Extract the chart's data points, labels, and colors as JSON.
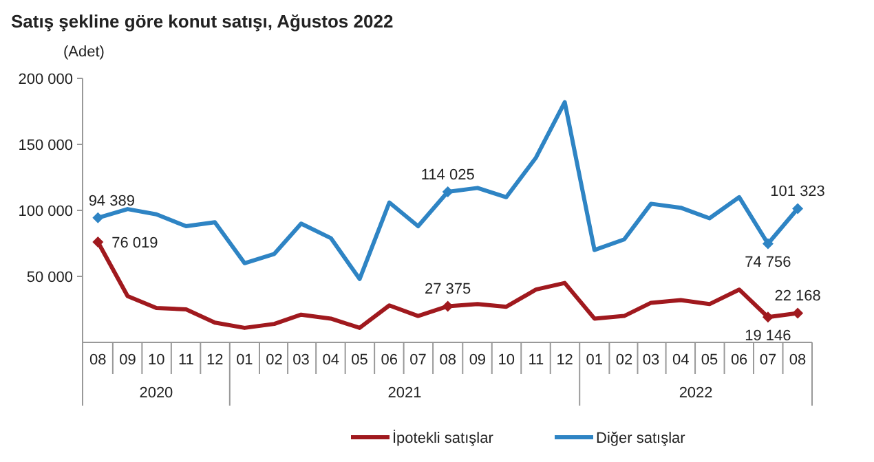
{
  "chart_data": {
    "type": "line",
    "title": "Satış şekline göre konut satışı, Ağustos 2022",
    "ylabel": "(Adet)",
    "x": [
      "2020-08",
      "2020-09",
      "2020-10",
      "2020-11",
      "2020-12",
      "2021-01",
      "2021-02",
      "2021-03",
      "2021-04",
      "2021-05",
      "2021-06",
      "2021-07",
      "2021-08",
      "2021-09",
      "2021-10",
      "2021-11",
      "2021-12",
      "2022-01",
      "2022-02",
      "2022-03",
      "2022-04",
      "2022-05",
      "2022-06",
      "2022-07",
      "2022-08"
    ],
    "xlim": [
      "2020-07-16",
      "2022-08-16"
    ],
    "xticks": [
      {
        "value": "2020-08",
        "label": "08"
      },
      {
        "value": "2020-09",
        "label": "09"
      },
      {
        "value": "2020-10",
        "label": "10"
      },
      {
        "value": "2020-11",
        "label": "11"
      },
      {
        "value": "2020-12",
        "label": "12"
      },
      {
        "value": "2021-01",
        "label": "01"
      },
      {
        "value": "2021-02",
        "label": "02"
      },
      {
        "value": "2021-03",
        "label": "03"
      },
      {
        "value": "2021-04",
        "label": "04"
      },
      {
        "value": "2021-05",
        "label": "05"
      },
      {
        "value": "2021-06",
        "label": "06"
      },
      {
        "value": "2021-07",
        "label": "07"
      },
      {
        "value": "2021-08",
        "label": "08"
      },
      {
        "value": "2021-09",
        "label": "09"
      },
      {
        "value": "2021-10",
        "label": "10"
      },
      {
        "value": "2021-11",
        "label": "11"
      },
      {
        "value": "2021-12",
        "label": "12"
      },
      {
        "value": "2022-01",
        "label": "01"
      },
      {
        "value": "2022-02",
        "label": "02"
      },
      {
        "value": "2022-03",
        "label": "03"
      },
      {
        "value": "2022-04",
        "label": "04"
      },
      {
        "value": "2022-05",
        "label": "05"
      },
      {
        "value": "2022-06",
        "label": "06"
      },
      {
        "value": "2022-07",
        "label": "07"
      },
      {
        "value": "2022-08",
        "label": "08"
      }
    ],
    "ylim": [
      0,
      200000
    ],
    "yticks": [
      {
        "value": 50000,
        "label": "50 000"
      },
      {
        "value": 100000,
        "label": "100 000"
      },
      {
        "value": 150000,
        "label": "150 000"
      },
      {
        "value": 200000,
        "label": "200 000"
      }
    ],
    "grid": false,
    "legend": "bottom",
    "line_style": "solid",
    "annotations": [
      "2020",
      "2021",
      "2022"
    ],
    "series": [
      {
        "name": "İpotekli satışlar",
        "color": "#a0191e",
        "values": [
          76019,
          35000,
          26000,
          25000,
          15000,
          11000,
          14000,
          21000,
          18000,
          11000,
          28000,
          20000,
          27375,
          29000,
          27000,
          40000,
          45000,
          18000,
          20000,
          30000,
          32000,
          29000,
          40000,
          19146,
          22168
        ],
        "value_labels": [
          "76 019",
          null,
          null,
          null,
          null,
          null,
          null,
          null,
          null,
          null,
          null,
          null,
          "27 375",
          null,
          null,
          null,
          null,
          null,
          null,
          null,
          null,
          null,
          null,
          "19 146",
          "22 168"
        ]
      },
      {
        "name": "Diğer satışlar",
        "color": "#2e84c4",
        "values": [
          94389,
          101000,
          97000,
          88000,
          91000,
          60000,
          67000,
          90000,
          79000,
          48000,
          106000,
          88000,
          114025,
          117000,
          110000,
          140000,
          182000,
          70000,
          78000,
          105000,
          102000,
          94000,
          110000,
          74756,
          101323
        ],
        "value_labels": [
          "94 389",
          null,
          null,
          null,
          null,
          null,
          null,
          null,
          null,
          null,
          null,
          null,
          "114 025",
          null,
          null,
          null,
          null,
          null,
          null,
          null,
          null,
          null,
          null,
          "74 756",
          "101 323"
        ]
      }
    ]
  }
}
